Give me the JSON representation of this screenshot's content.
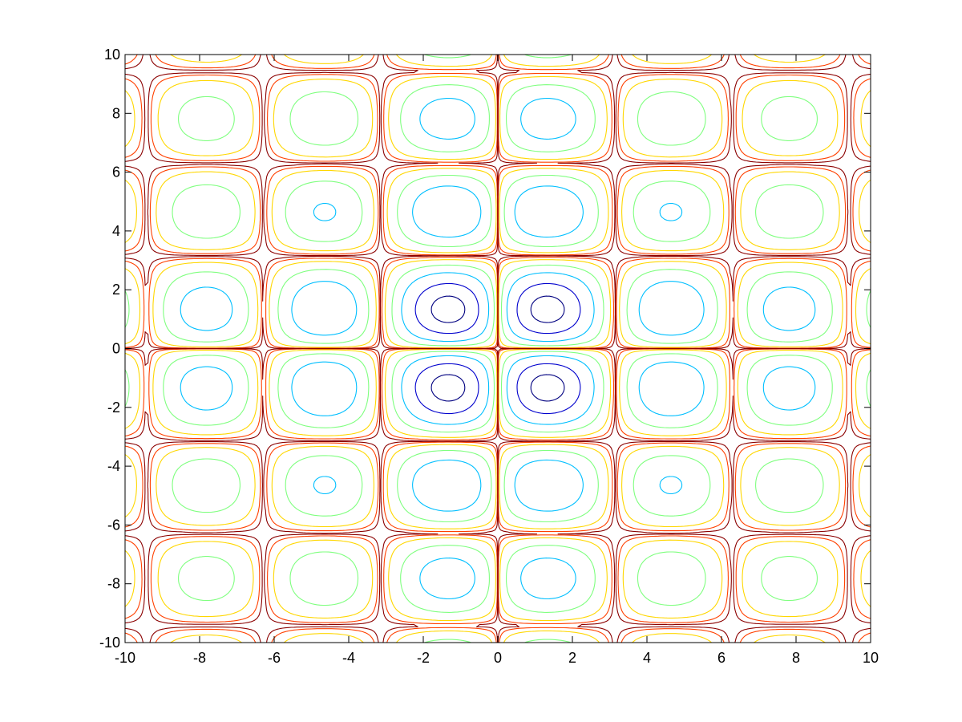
{
  "chart_data": {
    "type": "contour",
    "title": "",
    "xlabel": "",
    "ylabel": "",
    "xlim": [
      -10,
      10
    ],
    "ylim": [
      -10,
      10
    ],
    "x_ticks": [
      -10,
      -8,
      -6,
      -4,
      -2,
      0,
      2,
      4,
      6,
      8,
      10
    ],
    "y_ticks": [
      -10,
      -8,
      -6,
      -4,
      -2,
      0,
      2,
      4,
      6,
      8,
      10
    ],
    "x_tick_labels": [
      "-10",
      "-8",
      "-6",
      "-4",
      "-2",
      "0",
      "2",
      "4",
      "6",
      "8",
      "10"
    ],
    "y_tick_labels": [
      "-10",
      "-8",
      "-6",
      "-4",
      "-2",
      "0",
      "2",
      "4",
      "6",
      "8",
      "10"
    ],
    "grid": false,
    "legend": "none",
    "colormap": "jet",
    "levels": [
      {
        "value": -0.6,
        "color": "#000080"
      },
      {
        "value": -0.4,
        "color": "#0000cd"
      },
      {
        "value": -0.2,
        "color": "#00bfff"
      },
      {
        "value": -0.08,
        "color": "#7fff7f"
      },
      {
        "value": -0.02,
        "color": "#ffd700"
      },
      {
        "value": -0.005,
        "color": "#ff4000"
      },
      {
        "value": -0.0012,
        "color": "#8b0000"
      }
    ],
    "cell_centers_abs": [
      1.37,
      4.55,
      7.69
    ],
    "cell_extrema": [
      {
        "x": 1.37,
        "y": 1.37,
        "z": -0.73
      },
      {
        "x": 4.55,
        "y": 1.37,
        "z": -0.48
      },
      {
        "x": 7.69,
        "y": 1.37,
        "z": -0.29
      },
      {
        "x": 1.37,
        "y": 4.55,
        "z": -0.48
      },
      {
        "x": 4.55,
        "y": 4.55,
        "z": -0.3
      },
      {
        "x": 7.69,
        "y": 4.55,
        "z": -0.19
      },
      {
        "x": 1.37,
        "y": 7.69,
        "z": -0.29
      },
      {
        "x": 4.55,
        "y": 7.69,
        "z": -0.19
      },
      {
        "x": 7.69,
        "y": 7.69,
        "z": -0.13
      }
    ],
    "separatrix_lines": [
      -9.42,
      -6.28,
      -3.14,
      0,
      3.14,
      6.28,
      9.42
    ]
  }
}
